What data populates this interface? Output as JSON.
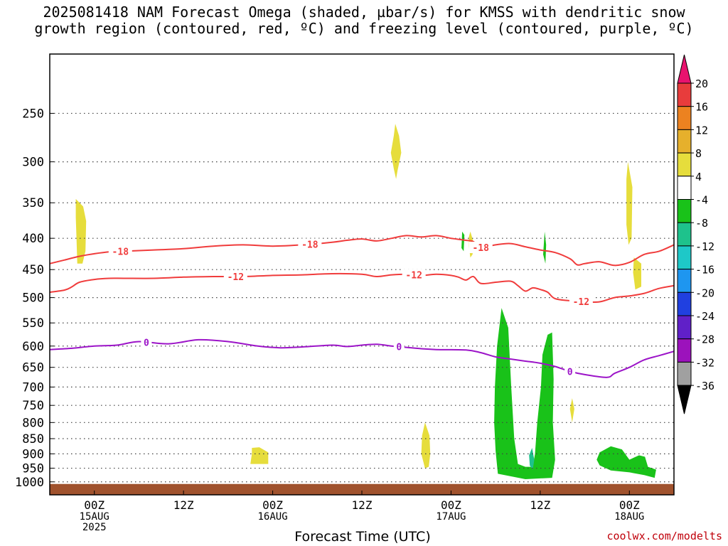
{
  "title_line1": "2025081418 NAM Forecast Omega (shaded, µbar/s) for KMSS with dendritic snow",
  "title_line2": "growth region (contoured, red, ºC) and freezing level (contoured, purple, ºC)",
  "xlabel": "Forecast Time (UTC)",
  "credit": "coolwx.com/modelts",
  "chart_data": {
    "type": "heatmap",
    "title": "2025081418 NAM Forecast Omega (shaded, µbar/s) for KMSS with dendritic snow growth region (contoured, red, ºC) and freezing level (contoured, purple, ºC)",
    "xlabel": "Forecast Time (UTC)",
    "ylabel": "",
    "y_axis": "pressure (hPa), log scale, inverted",
    "ylim": [
      1050,
      200
    ],
    "xlim_hours_from_init": [
      0,
      84
    ],
    "yticks": [
      250,
      300,
      350,
      400,
      450,
      500,
      550,
      600,
      650,
      700,
      750,
      800,
      850,
      900,
      950,
      1000
    ],
    "xticks": [
      {
        "hour": 6,
        "label": [
          "00Z",
          "15AUG",
          "2025"
        ]
      },
      {
        "hour": 18,
        "label": [
          "12Z"
        ]
      },
      {
        "hour": 30,
        "label": [
          "00Z",
          "16AUG"
        ]
      },
      {
        "hour": 42,
        "label": [
          "12Z"
        ]
      },
      {
        "hour": 54,
        "label": [
          "00Z",
          "17AUG"
        ]
      },
      {
        "hour": 66,
        "label": [
          "12Z"
        ]
      },
      {
        "hour": 78,
        "label": [
          "00Z",
          "18AUG"
        ]
      }
    ],
    "grid": "dotted horizontal at pressure levels",
    "colorbar": {
      "labels": [
        "20",
        "16",
        "12",
        "8",
        "4",
        "-4",
        "-8",
        "-12",
        "-16",
        "-20",
        "-24",
        "-28",
        "-32",
        "-36"
      ],
      "colors": [
        "#e8136e",
        "#e83c3c",
        "#ec8220",
        "#e6b02c",
        "#e6dd3c",
        "#ffffff",
        "#19c219",
        "#1ec28c",
        "#1ec8c8",
        "#1e96f0",
        "#2040e0",
        "#6020c8",
        "#9c12bc",
        "#a0a0a0",
        "#000000"
      ]
    },
    "contours": [
      {
        "name": "-18",
        "color": "#f03c3c",
        "label_hours": [
          9.5,
          35,
          58
        ],
        "points": [
          [
            0,
            440
          ],
          [
            2,
            434
          ],
          [
            4,
            428
          ],
          [
            6,
            424
          ],
          [
            8,
            421
          ],
          [
            10,
            420
          ],
          [
            14,
            418
          ],
          [
            18,
            416
          ],
          [
            22,
            412
          ],
          [
            26,
            410
          ],
          [
            30,
            412
          ],
          [
            34,
            410
          ],
          [
            38,
            406
          ],
          [
            40,
            403
          ],
          [
            42,
            401
          ],
          [
            44,
            404
          ],
          [
            46,
            400
          ],
          [
            48,
            396
          ],
          [
            50,
            398
          ],
          [
            52,
            396
          ],
          [
            54,
            400
          ],
          [
            56,
            403
          ],
          [
            57,
            405
          ],
          [
            58,
            414
          ],
          [
            60,
            410
          ],
          [
            62,
            408
          ],
          [
            64,
            413
          ],
          [
            66,
            418
          ],
          [
            68,
            422
          ],
          [
            70,
            432
          ],
          [
            71,
            442
          ],
          [
            72,
            440
          ],
          [
            74,
            437
          ],
          [
            76,
            443
          ],
          [
            78,
            438
          ],
          [
            80,
            425
          ],
          [
            82,
            420
          ],
          [
            84,
            410
          ]
        ]
      },
      {
        "name": "-12",
        "color": "#f03c3c",
        "label_hours": [
          25,
          49,
          71.5
        ],
        "points": [
          [
            0,
            490
          ],
          [
            2,
            486
          ],
          [
            3,
            480
          ],
          [
            4,
            472
          ],
          [
            6,
            467
          ],
          [
            8,
            465
          ],
          [
            10,
            465
          ],
          [
            14,
            465
          ],
          [
            18,
            463
          ],
          [
            22,
            462
          ],
          [
            26,
            462
          ],
          [
            30,
            460
          ],
          [
            34,
            459
          ],
          [
            38,
            457
          ],
          [
            42,
            458
          ],
          [
            44,
            462
          ],
          [
            46,
            459
          ],
          [
            48,
            458
          ],
          [
            50,
            460
          ],
          [
            52,
            458
          ],
          [
            54,
            460
          ],
          [
            55,
            463
          ],
          [
            56,
            468
          ],
          [
            57,
            462
          ],
          [
            58,
            474
          ],
          [
            60,
            472
          ],
          [
            62,
            470
          ],
          [
            63,
            478
          ],
          [
            64,
            488
          ],
          [
            65,
            482
          ],
          [
            66,
            485
          ],
          [
            67,
            490
          ],
          [
            68,
            502
          ],
          [
            70,
            506
          ],
          [
            72,
            508
          ],
          [
            74,
            508
          ],
          [
            76,
            500
          ],
          [
            78,
            497
          ],
          [
            80,
            492
          ],
          [
            82,
            483
          ],
          [
            84,
            478
          ]
        ]
      },
      {
        "name": "0",
        "color": "#9c14c8",
        "label_hours": [
          13,
          47,
          70
        ],
        "points": [
          [
            0,
            608
          ],
          [
            3,
            605
          ],
          [
            6,
            600
          ],
          [
            9,
            598
          ],
          [
            12,
            590
          ],
          [
            16,
            595
          ],
          [
            20,
            586
          ],
          [
            24,
            590
          ],
          [
            28,
            600
          ],
          [
            31,
            604
          ],
          [
            34,
            602
          ],
          [
            38,
            598
          ],
          [
            40,
            601
          ],
          [
            42,
            598
          ],
          [
            44,
            596
          ],
          [
            46,
            600
          ],
          [
            48,
            603
          ],
          [
            50,
            606
          ],
          [
            52,
            608
          ],
          [
            56,
            609
          ],
          [
            58,
            615
          ],
          [
            60,
            625
          ],
          [
            62,
            630
          ],
          [
            64,
            635
          ],
          [
            66,
            640
          ],
          [
            68,
            648
          ],
          [
            70,
            660
          ],
          [
            72,
            668
          ],
          [
            75,
            675
          ],
          [
            76,
            665
          ],
          [
            78,
            650
          ],
          [
            80,
            632
          ],
          [
            82,
            622
          ],
          [
            84,
            612
          ]
        ]
      }
    ],
    "shaded_regions": [
      {
        "value": ">4",
        "color": "#e6dd3c",
        "points": [
          [
            3.5,
            345
          ],
          [
            4.5,
            355
          ],
          [
            4.9,
            375
          ],
          [
            4.8,
            420
          ],
          [
            4.4,
            440
          ],
          [
            3.7,
            440
          ],
          [
            3.6,
            400
          ],
          [
            3.5,
            370
          ]
        ]
      },
      {
        "value": ">4",
        "color": "#e6dd3c",
        "points": [
          [
            46.5,
            260
          ],
          [
            47,
            272
          ],
          [
            47.3,
            290
          ],
          [
            46.8,
            310
          ],
          [
            46.6,
            320
          ],
          [
            46.3,
            308
          ],
          [
            45.9,
            290
          ],
          [
            46.3,
            272
          ]
        ]
      },
      {
        "value": ">4",
        "color": "#e6dd3c",
        "points": [
          [
            27.2,
            880
          ],
          [
            28.2,
            878
          ],
          [
            29.4,
            895
          ],
          [
            29.4,
            935
          ],
          [
            27,
            935
          ],
          [
            27.2,
            900
          ]
        ]
      },
      {
        "value": ">4",
        "color": "#e6dd3c",
        "points": [
          [
            50.5,
            800
          ],
          [
            51.1,
            840
          ],
          [
            51.2,
            900
          ],
          [
            51,
            945
          ],
          [
            50.5,
            950
          ],
          [
            50,
            900
          ],
          [
            50.1,
            840
          ]
        ]
      },
      {
        "value": ">4",
        "color": "#e6dd3c",
        "points": [
          [
            56.6,
            390
          ],
          [
            57,
            405
          ],
          [
            56.9,
            425
          ],
          [
            56.6,
            430
          ],
          [
            56.4,
            412
          ],
          [
            56.4,
            398
          ]
        ]
      },
      {
        "value": ">4",
        "color": "#e6dd3c",
        "points": [
          [
            77.8,
            300
          ],
          [
            78.4,
            330
          ],
          [
            78.3,
            400
          ],
          [
            77.9,
            410
          ],
          [
            77.6,
            380
          ],
          [
            77.6,
            320
          ]
        ]
      },
      {
        "value": ">4",
        "color": "#e6dd3c",
        "points": [
          [
            78.6,
            430
          ],
          [
            79.6,
            440
          ],
          [
            79.6,
            480
          ],
          [
            78.8,
            485
          ],
          [
            78.5,
            455
          ]
        ]
      },
      {
        "value": ">4",
        "color": "#e6dd3c",
        "points": [
          [
            70.3,
            730
          ],
          [
            70.6,
            760
          ],
          [
            70.3,
            800
          ],
          [
            70,
            760
          ]
        ]
      },
      {
        "value": "<-4",
        "color": "#19c219",
        "points": [
          [
            60.8,
            520
          ],
          [
            61.7,
            560
          ],
          [
            62.1,
            700
          ],
          [
            62.5,
            850
          ],
          [
            63,
            935
          ],
          [
            64,
            945
          ],
          [
            65,
            945
          ],
          [
            65.3,
            900
          ],
          [
            65.6,
            800
          ],
          [
            66.1,
            700
          ],
          [
            66.3,
            620
          ],
          [
            67,
            575
          ],
          [
            67.6,
            570
          ],
          [
            67.8,
            680
          ],
          [
            67.7,
            800
          ],
          [
            68,
            920
          ],
          [
            67.6,
            985
          ],
          [
            64,
            990
          ],
          [
            60.3,
            970
          ],
          [
            60,
            890
          ],
          [
            59.8,
            800
          ],
          [
            59.9,
            700
          ],
          [
            60.2,
            600
          ]
        ]
      },
      {
        "value": "<-4",
        "color": "#19c219",
        "points": [
          [
            55.5,
            390
          ],
          [
            55.8,
            395
          ],
          [
            55.7,
            420
          ],
          [
            55.4,
            415
          ]
        ]
      },
      {
        "value": "<-4",
        "color": "#19c219",
        "points": [
          [
            66.6,
            390
          ],
          [
            66.8,
            410
          ],
          [
            66.7,
            440
          ],
          [
            66.4,
            425
          ]
        ]
      },
      {
        "value": "<-4",
        "color": "#19c219",
        "points": [
          [
            74,
            895
          ],
          [
            75.5,
            875
          ],
          [
            77,
            885
          ],
          [
            78,
            920
          ],
          [
            79.3,
            905
          ],
          [
            80.1,
            910
          ],
          [
            80.5,
            945
          ],
          [
            81.6,
            955
          ],
          [
            81.4,
            985
          ],
          [
            80,
            975
          ],
          [
            78,
            965
          ],
          [
            75.5,
            958
          ],
          [
            74,
            940
          ],
          [
            73.6,
            920
          ]
        ]
      },
      {
        "value": "<-8",
        "color": "#1ec28c",
        "points": [
          [
            64.9,
            880
          ],
          [
            65.2,
            920
          ],
          [
            65,
            955
          ],
          [
            64.6,
            940
          ],
          [
            64.5,
            905
          ]
        ]
      }
    ],
    "terrain": {
      "color": "#a0522d",
      "surface_pressure_hpa": 1008
    }
  }
}
